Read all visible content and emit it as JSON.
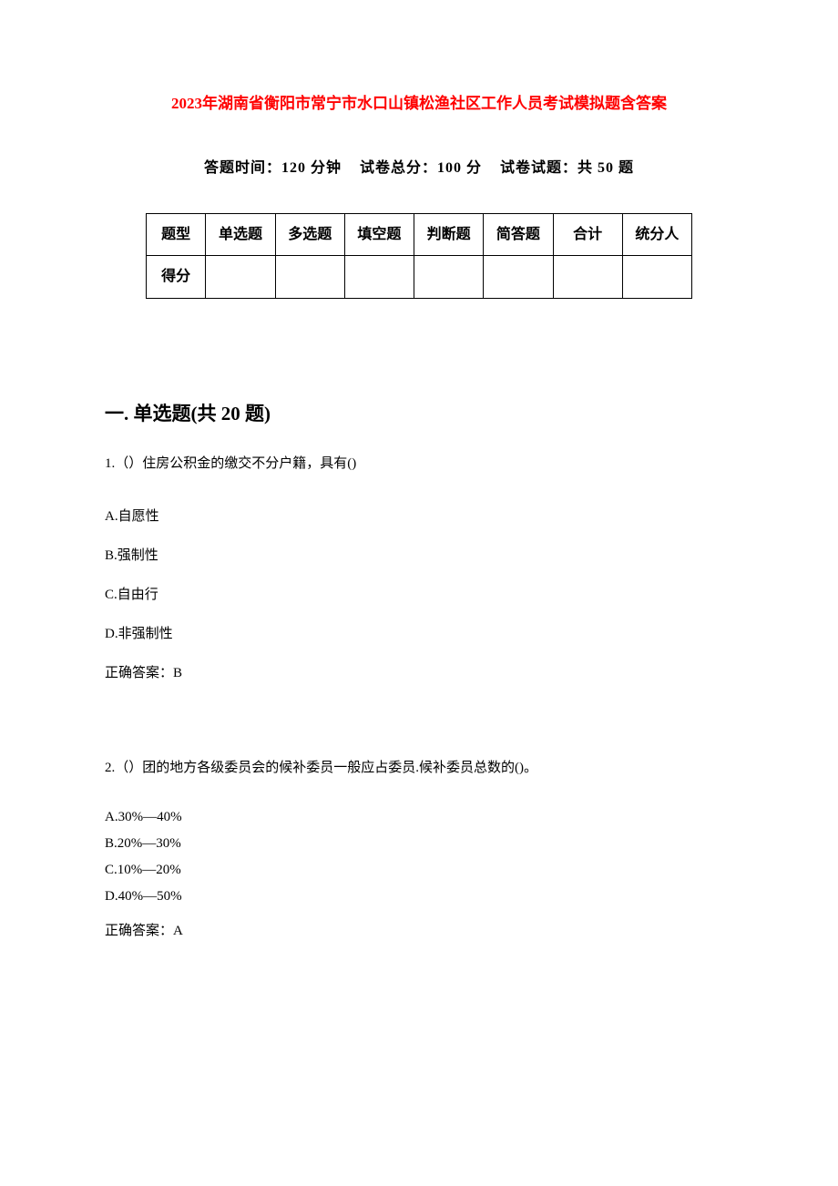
{
  "header": {
    "title_year": "2023",
    "title_rest": "年湖南省衡阳市常宁市水口山镇松渔社区工作人员考试模拟题含答案",
    "exam_info_time_label": "答题时间：",
    "exam_info_time_value": "120 分钟",
    "exam_info_total_label": "试卷总分：",
    "exam_info_total_value": "100 分",
    "exam_info_count_label": "试卷试题：",
    "exam_info_count_value": "共 50 题"
  },
  "table": {
    "row1": {
      "label": "题型",
      "cols": [
        "单选题",
        "多选题",
        "填空题",
        "判断题",
        "简答题",
        "合计",
        "统分人"
      ]
    },
    "row2": {
      "label": "得分",
      "cols": [
        "",
        "",
        "",
        "",
        "",
        "",
        ""
      ]
    }
  },
  "section1": {
    "heading": "一. 单选题(共 20 题)"
  },
  "q1": {
    "stem": "1.（）住房公积金的缴交不分户籍，具有()",
    "optA": "A.自愿性",
    "optB": "B.强制性",
    "optC": "C.自由行",
    "optD": "D.非强制性",
    "answer": "正确答案：B"
  },
  "q2": {
    "stem": "2.（）团的地方各级委员会的候补委员一般应占委员.候补委员总数的()。",
    "optA": "A.30%—40%",
    "optB": "B.20%—30%",
    "optC": "C.10%—20%",
    "optD": "D.40%—50%",
    "answer": "正确答案：A"
  },
  "colors": {
    "title_color": "#ff0000",
    "text_color": "#000000",
    "background_color": "#ffffff",
    "border_color": "#000000"
  }
}
